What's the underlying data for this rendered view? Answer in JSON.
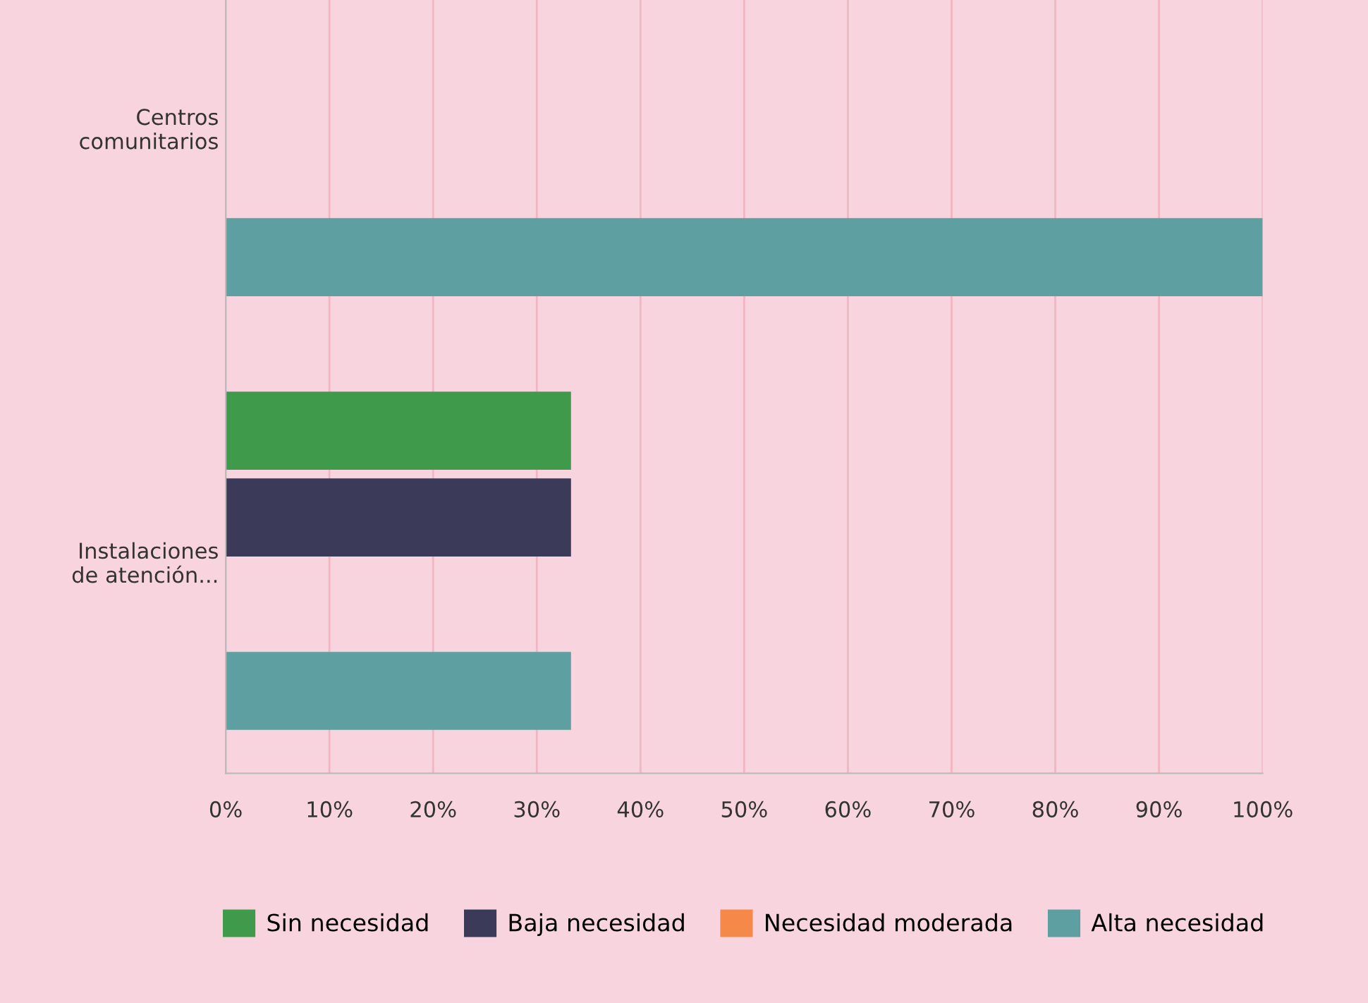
{
  "chart_data": {
    "type": "bar",
    "orientation": "horizontal",
    "categories": [
      "Centros\ncomunitarios",
      "Instalaciones\nde atención..."
    ],
    "series": [
      {
        "name": "Sin necesidad",
        "color": "#3f9a4c",
        "values": [
          null,
          33.3
        ]
      },
      {
        "name": "Baja necesidad",
        "color": "#3b3a58",
        "values": [
          null,
          33.3
        ]
      },
      {
        "name": "Necesidad moderada",
        "color": "#f5894a",
        "values": [
          null,
          null
        ]
      },
      {
        "name": "Alta necesidad",
        "color": "#5e9fa1",
        "values": [
          100,
          33.3
        ]
      }
    ],
    "xlim": [
      0,
      100
    ],
    "xticks": [
      {
        "value": 0,
        "label": "0%"
      },
      {
        "value": 10,
        "label": "10%"
      },
      {
        "value": 20,
        "label": "20%"
      },
      {
        "value": 30,
        "label": "30%"
      },
      {
        "value": 40,
        "label": "40%"
      },
      {
        "value": 50,
        "label": "50%"
      },
      {
        "value": 60,
        "label": "60%"
      },
      {
        "value": 70,
        "label": "70%"
      },
      {
        "value": 80,
        "label": "80%"
      },
      {
        "value": 90,
        "label": "90%"
      },
      {
        "value": 100,
        "label": "100%"
      }
    ],
    "grid": "x",
    "legend": "bottom"
  }
}
